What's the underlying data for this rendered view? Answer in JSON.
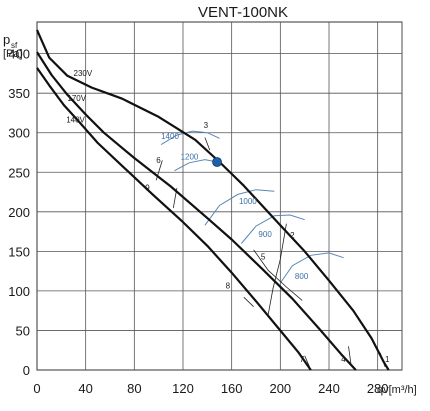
{
  "chart_data": {
    "type": "line",
    "title": "VENT-100NK",
    "ylabel_main": "p",
    "ylabel_sub": "sf",
    "ylabel_unit": "[Pa]",
    "xlabel": "qv[m³/h]",
    "xlim": [
      0,
      300
    ],
    "ylim": [
      0,
      440
    ],
    "x_ticks": [
      0,
      40,
      80,
      120,
      160,
      200,
      240,
      280
    ],
    "y_ticks": [
      0,
      50,
      100,
      150,
      200,
      250,
      300,
      350,
      400
    ],
    "grid": true,
    "series": [
      {
        "name": "230V",
        "points": [
          [
            0,
            430
          ],
          [
            10,
            395
          ],
          [
            25,
            372
          ],
          [
            45,
            357
          ],
          [
            70,
            343
          ],
          [
            100,
            320
          ],
          [
            130,
            291
          ],
          [
            150,
            263
          ],
          [
            170,
            233
          ],
          [
            200,
            183
          ],
          [
            220,
            150
          ],
          [
            240,
            113
          ],
          [
            260,
            75
          ],
          [
            275,
            40
          ],
          [
            285,
            10
          ],
          [
            289,
            0
          ]
        ]
      },
      {
        "name": "170V",
        "points": [
          [
            0,
            402
          ],
          [
            12,
            373
          ],
          [
            25,
            348
          ],
          [
            40,
            323
          ],
          [
            55,
            300
          ],
          [
            80,
            268
          ],
          [
            110,
            232
          ],
          [
            140,
            192
          ],
          [
            160,
            165
          ],
          [
            185,
            128
          ],
          [
            210,
            90
          ],
          [
            232,
            52
          ],
          [
            250,
            20
          ],
          [
            262,
            0
          ]
        ]
      },
      {
        "name": "140V",
        "points": [
          [
            0,
            382
          ],
          [
            10,
            360
          ],
          [
            22,
            335
          ],
          [
            35,
            313
          ],
          [
            50,
            287
          ],
          [
            70,
            258
          ],
          [
            95,
            222
          ],
          [
            120,
            187
          ],
          [
            140,
            157
          ],
          [
            160,
            123
          ],
          [
            180,
            87
          ],
          [
            200,
            50
          ],
          [
            215,
            22
          ],
          [
            225,
            0
          ]
        ]
      }
    ],
    "iso_lines": [
      {
        "name": "3",
        "points": [
          [
            142,
            278
          ],
          [
            138,
            294
          ]
        ]
      },
      {
        "name": "2",
        "points": [
          [
            205,
            185
          ],
          [
            200,
            140
          ],
          [
            194,
            103
          ],
          [
            190,
            70
          ]
        ]
      },
      {
        "name": "1",
        "points": [
          [
            282,
            22
          ],
          [
            286,
            4
          ]
        ]
      },
      {
        "name": "4",
        "points": [
          [
            256,
            30
          ],
          [
            258,
            8
          ]
        ]
      },
      {
        "name": "5",
        "points": [
          [
            178,
            152
          ],
          [
            190,
            126
          ],
          [
            205,
            105
          ],
          [
            218,
            88
          ]
        ]
      },
      {
        "name": "6",
        "points": [
          [
            103,
            265
          ],
          [
            98,
            240
          ]
        ]
      },
      {
        "name": "7",
        "points": [
          [
            220,
            18
          ],
          [
            224,
            4
          ]
        ]
      },
      {
        "name": "8",
        "points": [
          [
            170,
            92
          ],
          [
            178,
            80
          ]
        ]
      },
      {
        "name": "9",
        "points": [
          [
            115,
            230
          ],
          [
            112,
            205
          ]
        ]
      }
    ],
    "rpm_curves": [
      {
        "name": "1400",
        "points": [
          [
            102,
            285
          ],
          [
            115,
            297
          ],
          [
            128,
            302
          ],
          [
            140,
            300
          ],
          [
            150,
            293
          ]
        ]
      },
      {
        "name": "1200",
        "points": [
          [
            113,
            252
          ],
          [
            125,
            262
          ],
          [
            138,
            266
          ],
          [
            148,
            263
          ]
        ]
      },
      {
        "name": "1000",
        "points": [
          [
            138,
            183
          ],
          [
            150,
            208
          ],
          [
            165,
            222
          ],
          [
            180,
            228
          ],
          [
            195,
            226
          ]
        ]
      },
      {
        "name": "900",
        "points": [
          [
            168,
            160
          ],
          [
            180,
            182
          ],
          [
            195,
            195
          ],
          [
            208,
            196
          ],
          [
            220,
            190
          ]
        ]
      },
      {
        "name": "800",
        "points": [
          [
            200,
            110
          ],
          [
            210,
            132
          ],
          [
            225,
            145
          ],
          [
            240,
            148
          ],
          [
            252,
            142
          ]
        ]
      }
    ],
    "curve_labels": [
      {
        "text": "230V",
        "x": 30,
        "y": 372
      },
      {
        "text": "170V",
        "x": 25,
        "y": 340
      },
      {
        "text": "140V",
        "x": 24,
        "y": 313
      },
      {
        "text": "3",
        "x": 137,
        "y": 306
      },
      {
        "text": "6",
        "x": 98,
        "y": 262
      },
      {
        "text": "9",
        "x": 89,
        "y": 227
      },
      {
        "text": "2",
        "x": 208,
        "y": 167
      },
      {
        "text": "5",
        "x": 184,
        "y": 140
      },
      {
        "text": "8",
        "x": 155,
        "y": 103
      },
      {
        "text": "7",
        "x": 216,
        "y": 10
      },
      {
        "text": "4",
        "x": 250,
        "y": 10
      },
      {
        "text": "1",
        "x": 286,
        "y": 10
      }
    ],
    "rpm_labels": [
      {
        "text": "1400",
        "x": 102,
        "y": 292
      },
      {
        "text": "1200",
        "x": 118,
        "y": 266
      },
      {
        "text": "1000",
        "x": 166,
        "y": 210
      },
      {
        "text": "900",
        "x": 182,
        "y": 168
      },
      {
        "text": "800",
        "x": 212,
        "y": 115
      }
    ],
    "operating_point": {
      "x": 148,
      "y": 263,
      "color": "#1f5fa8"
    }
  }
}
